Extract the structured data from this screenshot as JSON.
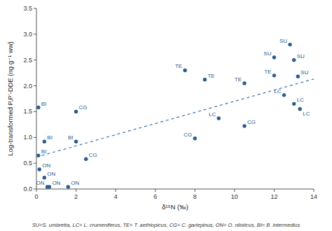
{
  "chart_data": {
    "type": "scatter",
    "x_label": "δ¹⁵N (‰)",
    "y_label": "Log-transformed P,P′-DDE (ng g⁻¹ ww)",
    "caption": "SU=S. umbretta, LC= L. crumeniferus, TE= T. aethiopicus, CG= C. gariepinus, ON= O. niloticus, BI= B. intermedius",
    "xlim": [
      0,
      14
    ],
    "ylim": [
      0,
      3.5
    ],
    "xticks": [
      0,
      2,
      4,
      6,
      8,
      10,
      12,
      14
    ],
    "yticks": [
      {
        "value": 0.0,
        "label": "0.0"
      },
      0.5,
      {
        "value": 1.0,
        "label": "1.0"
      },
      1.5,
      {
        "value": 2.0,
        "label": "2.0"
      },
      2.5,
      {
        "value": 3.0,
        "label": "3.0"
      },
      3.5
    ],
    "grid": false,
    "series": [
      {
        "type": "scatter",
        "marker": "circle",
        "color": "#2b5c8a",
        "x": [
          0.1,
          0.4,
          0.1,
          0.15,
          0.4,
          0.55,
          0.65,
          1.6,
          2.0,
          2.0,
          2.5,
          7.5,
          8.0,
          8.5,
          9.2,
          10.5,
          10.5,
          12.0,
          12.0,
          12.5,
          12.8,
          13.0,
          13.0,
          13.3,
          13.2
        ],
        "values": [
          1.58,
          0.92,
          0.65,
          0.38,
          0.22,
          0.04,
          0.04,
          0.04,
          1.5,
          0.92,
          0.58,
          2.3,
          0.98,
          2.12,
          1.37,
          2.05,
          1.22,
          2.2,
          2.55,
          1.82,
          2.8,
          1.65,
          2.5,
          1.55,
          2.18
        ],
        "labels": [
          "BI",
          "BI",
          "BI",
          "ON",
          "ON",
          "ON",
          "ON",
          "ON",
          "CG",
          "BI",
          "CG",
          "TE",
          "CG",
          "TE",
          "LC",
          "TE",
          "CG",
          "TE",
          "SU",
          "LC",
          "SU",
          "LC",
          "SU",
          "LC",
          "SU"
        ]
      },
      {
        "type": "line",
        "line_style": "dashed",
        "color": "#3a6fa8",
        "x": [
          0.0,
          14.0
        ],
        "values": [
          0.62,
          2.132
        ]
      }
    ]
  }
}
